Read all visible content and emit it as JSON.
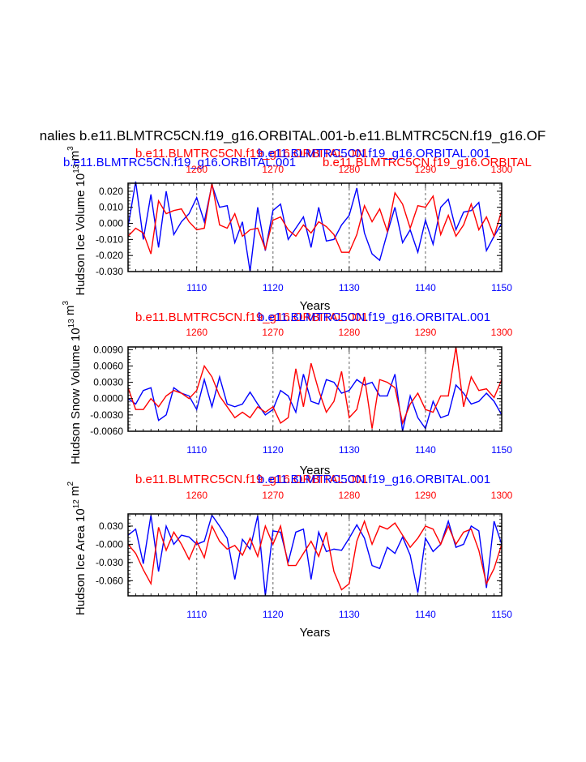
{
  "figure": {
    "main_title": "nalies b.e11.BLMTRC5CN.f19_g16.ORBITAL.001-b.e11.BLMTRC5CN.f19_g16.OF",
    "blue_top_label": "b.e11.BLMTRC5CN.f19_g16.ORBITAL.001",
    "red_top_label": "b.e11.BLMTRC5CN.f19_g16.ORBITAL",
    "colors": {
      "red": "#ff0000",
      "blue": "#0000ff",
      "axis": "#000000",
      "grid": "#888888"
    }
  },
  "chart_data": [
    {
      "type": "line",
      "panel_name": "hudson-ice-volume",
      "ylabel": "Hudson Ice Volume 10",
      "ylabel_exp": "13",
      "ylabel_unit": "m",
      "ylabel_unit_exp": "3",
      "xlabel": "Years",
      "red_title": "b.e11.BLMTRC5CN.f19_g16.ORBITAL.001",
      "blue_title": "b.e11.BLMTRC5CN.f19_g16.ORBITAL.001",
      "xlim_bottom": [
        1101,
        1150
      ],
      "xlim_top": [
        1251,
        1300
      ],
      "ylim": [
        -0.03,
        0.025
      ],
      "y_ticks": [
        -0.03,
        -0.02,
        -0.01,
        0.0,
        0.01,
        0.02
      ],
      "y_tick_labels": [
        "-0.030",
        "-0.020",
        "-0.010",
        "0.000",
        "0.010",
        "0.020"
      ],
      "x_ticks_bottom": [
        1110,
        1120,
        1130,
        1140,
        1150
      ],
      "x_ticks_top": [
        1260,
        1270,
        1280,
        1290,
        1300
      ],
      "series": [
        {
          "name": "blue",
          "values": [
            -0.002,
            0.026,
            -0.01,
            0.018,
            -0.015,
            0.02,
            -0.007,
            0.001,
            0.006,
            0.016,
            0.001,
            0.024,
            0.01,
            0.011,
            -0.012,
            0.001,
            -0.03,
            0.01,
            -0.017,
            0.008,
            0.012,
            -0.01,
            -0.003,
            0.004,
            -0.015,
            0.01,
            -0.011,
            -0.01,
            -0.001,
            0.005,
            0.022,
            -0.006,
            -0.019,
            -0.023,
            -0.006,
            0.01,
            -0.012,
            -0.004,
            -0.018,
            0.002,
            -0.013,
            0.01,
            0.015,
            -0.004,
            0.007,
            0.008,
            0.013,
            -0.017,
            -0.008,
            0.0
          ]
        },
        {
          "name": "red",
          "values": [
            -0.008,
            -0.003,
            -0.006,
            -0.019,
            0.014,
            0.006,
            0.008,
            0.009,
            0.001,
            -0.004,
            -0.003,
            0.025,
            -0.001,
            -0.003,
            0.006,
            -0.008,
            -0.004,
            -0.003,
            -0.016,
            0.002,
            0.004,
            -0.004,
            -0.008,
            -0.001,
            -0.006,
            0.001,
            -0.002,
            -0.007,
            -0.018,
            -0.018,
            -0.007,
            0.011,
            0.001,
            0.009,
            -0.005,
            0.019,
            0.012,
            -0.003,
            0.011,
            0.01,
            0.017,
            -0.007,
            0.005,
            -0.008,
            -0.001,
            0.012,
            -0.004,
            0.004,
            -0.008,
            0.008
          ]
        }
      ]
    },
    {
      "type": "line",
      "panel_name": "hudson-snow-volume",
      "ylabel": "Hudson Snow Volume 10",
      "ylabel_exp": "13",
      "ylabel_unit": "m",
      "ylabel_unit_exp": "3",
      "xlabel": "Years",
      "red_title": "b.e11.BLMTRC5CN.f19_g16.ORBITAL.001",
      "blue_title": "b.e11.BLMTRC5CN.f19_g16.ORBITAL.001",
      "xlim_bottom": [
        1101,
        1150
      ],
      "xlim_top": [
        1251,
        1300
      ],
      "ylim": [
        -0.006,
        0.0095
      ],
      "y_ticks": [
        -0.006,
        -0.003,
        0.0,
        0.003,
        0.006,
        0.009
      ],
      "y_tick_labels": [
        "-0.0060",
        "-0.0030",
        "0.0000",
        "0.0030",
        "0.0060",
        "0.0090"
      ],
      "x_ticks_bottom": [
        1110,
        1120,
        1130,
        1140,
        1150
      ],
      "x_ticks_top": [
        1260,
        1270,
        1280,
        1290,
        1300
      ],
      "series": [
        {
          "name": "blue",
          "values": [
            0.0,
            -0.001,
            0.0015,
            0.002,
            -0.004,
            -0.003,
            0.002,
            0.001,
            0.0005,
            -0.002,
            0.0035,
            -0.0015,
            0.004,
            -0.001,
            -0.0015,
            -0.001,
            0.0012,
            -0.001,
            -0.003,
            -0.002,
            0.0015,
            0.0005,
            -0.0025,
            0.0045,
            -0.0005,
            -0.001,
            0.0035,
            0.003,
            0.001,
            0.0015,
            0.0035,
            0.0025,
            0.003,
            0.0005,
            0.0005,
            0.0045,
            -0.006,
            0.0005,
            -0.0035,
            -0.0055,
            -0.0005,
            -0.0035,
            -0.003,
            0.0025,
            0.001,
            -0.001,
            -0.0005,
            0.001,
            -0.0005,
            -0.003
          ]
        },
        {
          "name": "red",
          "values": [
            0.002,
            -0.002,
            -0.002,
            0.0,
            -0.0015,
            0.0005,
            0.0015,
            0.001,
            0.0,
            0.0015,
            0.006,
            0.004,
            0.0005,
            -0.0015,
            -0.0035,
            -0.0025,
            -0.0035,
            -0.0015,
            -0.0025,
            -0.0015,
            -0.0045,
            -0.0035,
            0.0055,
            -0.0015,
            0.0065,
            0.0015,
            -0.0025,
            -0.0005,
            0.005,
            -0.0035,
            -0.002,
            0.004,
            -0.0055,
            0.0035,
            0.003,
            0.002,
            -0.0045,
            -0.001,
            0.001,
            -0.002,
            -0.0025,
            0.0005,
            0.0005,
            0.0095,
            -0.0015,
            0.004,
            0.0015,
            0.0018,
            0.0002,
            0.0035
          ]
        }
      ]
    },
    {
      "type": "line",
      "panel_name": "hudson-ice-area",
      "ylabel": "Hudson Ice Area 10",
      "ylabel_exp": "12",
      "ylabel_unit": "m",
      "ylabel_unit_exp": "2",
      "xlabel": "Years",
      "red_title": "b.e11.BLMTRC5CN.f19_g16.ORBITAL.001",
      "blue_title": "b.e11.BLMTRC5CN.f19_g16.ORBITAL.001",
      "xlim_bottom": [
        1101,
        1150
      ],
      "xlim_top": [
        1251,
        1300
      ],
      "ylim": [
        -0.085,
        0.05
      ],
      "y_ticks": [
        -0.06,
        -0.03,
        0.0,
        0.03
      ],
      "y_tick_labels": [
        "-0.060",
        "-0.030",
        "-0.000",
        "0.030"
      ],
      "x_ticks_bottom": [
        1110,
        1120,
        1130,
        1140,
        1150
      ],
      "x_ticks_top": [
        1260,
        1270,
        1280,
        1290,
        1300
      ],
      "series": [
        {
          "name": "blue",
          "values": [
            0.015,
            0.025,
            -0.032,
            0.048,
            -0.045,
            0.03,
            0.0,
            0.015,
            0.012,
            0.0,
            0.005,
            0.048,
            0.03,
            0.01,
            -0.058,
            0.008,
            -0.008,
            0.047,
            -0.085,
            0.022,
            0.02,
            -0.03,
            0.02,
            0.025,
            -0.058,
            0.02,
            -0.012,
            -0.008,
            -0.01,
            0.01,
            0.032,
            0.01,
            -0.035,
            -0.04,
            -0.005,
            -0.015,
            0.012,
            -0.018,
            -0.08,
            0.01,
            -0.012,
            0.0,
            0.038,
            -0.005,
            0.0,
            0.03,
            0.022,
            -0.072,
            0.038,
            0.0
          ]
        },
        {
          "name": "red",
          "values": [
            0.0,
            -0.015,
            -0.042,
            -0.065,
            0.028,
            -0.01,
            0.02,
            0.0,
            -0.025,
            0.005,
            -0.022,
            0.03,
            0.005,
            -0.008,
            -0.002,
            -0.018,
            0.01,
            -0.02,
            0.03,
            0.0,
            0.03,
            -0.035,
            -0.035,
            -0.015,
            0.005,
            -0.02,
            0.02,
            -0.045,
            -0.075,
            -0.065,
            0.005,
            0.038,
            0.0,
            0.03,
            0.025,
            0.035,
            0.015,
            -0.005,
            0.01,
            0.03,
            0.025,
            0.0,
            0.03,
            0.0,
            0.02,
            0.025,
            -0.01,
            -0.065,
            -0.04,
            0.0
          ]
        }
      ]
    }
  ]
}
